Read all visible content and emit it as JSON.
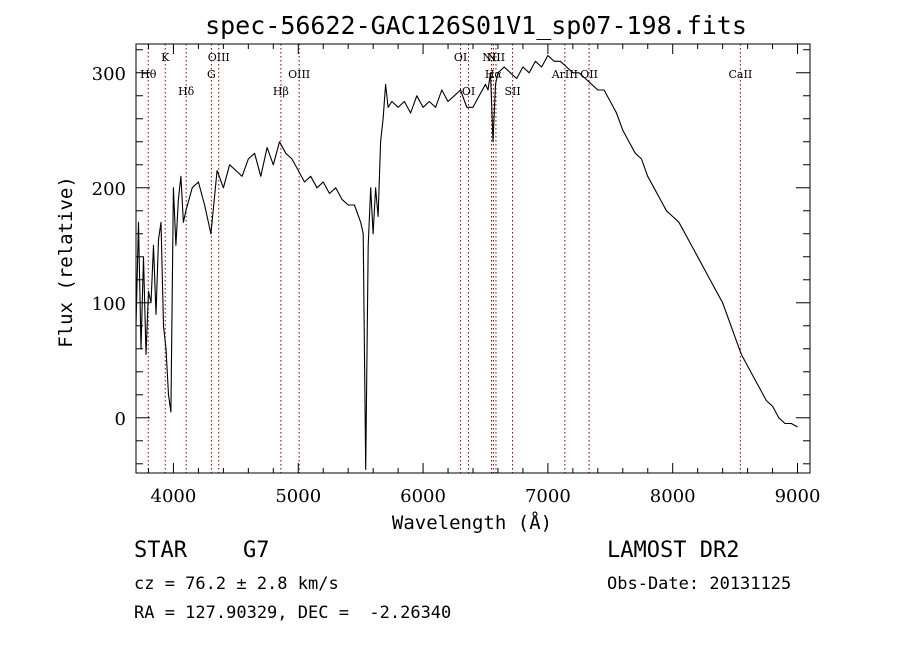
{
  "chart_data": {
    "type": "line",
    "title": "spec-56622-GAC126S01V1_sp07-198.fits",
    "xlabel": "Wavelength (Å)",
    "ylabel": "Flux (relative)",
    "xlim": [
      3700,
      9100
    ],
    "ylim": [
      -48,
      325
    ],
    "x_ticks": [
      4000,
      5000,
      6000,
      7000,
      8000,
      9000
    ],
    "x_tick_labels": [
      "4000",
      "5000",
      "6000",
      "7000",
      "8000",
      "9000"
    ],
    "y_ticks": [
      0,
      100,
      200,
      300
    ],
    "y_tick_labels": [
      "0",
      "100",
      "200",
      "300"
    ],
    "line_color": "#000000",
    "marker_color": "#8b0000",
    "series": [
      {
        "x": [
          3700,
          3720,
          3740,
          3760,
          3780,
          3800,
          3820,
          3840,
          3860,
          3880,
          3900,
          3920,
          3940,
          3960,
          3980,
          4000,
          4020,
          4040,
          4060,
          4080,
          4100,
          4150,
          4200,
          4250,
          4300,
          4350,
          4400,
          4450,
          4500,
          4550,
          4600,
          4650,
          4700,
          4750,
          4800,
          4850,
          4900,
          4950,
          5000,
          5050,
          5100,
          5150,
          5200,
          5250,
          5300,
          5350,
          5400,
          5450,
          5500,
          5520,
          5540,
          5560,
          5580,
          5600,
          5620,
          5640,
          5660,
          5680,
          5700,
          5720,
          5750,
          5800,
          5850,
          5900,
          5950,
          6000,
          6050,
          6100,
          6150,
          6200,
          6250,
          6300,
          6350,
          6400,
          6450,
          6500,
          6520,
          6540,
          6560,
          6580,
          6600,
          6650,
          6700,
          6750,
          6800,
          6850,
          6900,
          6950,
          7000,
          7050,
          7100,
          7150,
          7200,
          7250,
          7300,
          7350,
          7400,
          7450,
          7500,
          7550,
          7600,
          7650,
          7700,
          7750,
          7800,
          7850,
          7900,
          7950,
          8000,
          8050,
          8100,
          8150,
          8200,
          8250,
          8300,
          8350,
          8400,
          8450,
          8500,
          8550,
          8600,
          8650,
          8700,
          8750,
          8800,
          8850,
          8900,
          8950,
          9000
        ],
        "y": [
          80,
          170,
          60,
          140,
          55,
          110,
          100,
          150,
          90,
          155,
          170,
          80,
          60,
          20,
          5,
          200,
          150,
          190,
          210,
          170,
          180,
          200,
          205,
          185,
          160,
          215,
          200,
          220,
          215,
          210,
          225,
          230,
          210,
          235,
          220,
          240,
          230,
          225,
          215,
          205,
          210,
          200,
          205,
          195,
          200,
          190,
          185,
          185,
          170,
          160,
          -45,
          150,
          200,
          160,
          200,
          175,
          240,
          260,
          290,
          270,
          275,
          270,
          275,
          265,
          280,
          270,
          275,
          270,
          285,
          275,
          280,
          285,
          270,
          270,
          280,
          290,
          285,
          300,
          240,
          290,
          300,
          305,
          300,
          295,
          305,
          300,
          310,
          305,
          315,
          310,
          310,
          305,
          300,
          300,
          295,
          290,
          285,
          285,
          275,
          265,
          250,
          240,
          230,
          225,
          210,
          200,
          190,
          180,
          175,
          170,
          160,
          150,
          140,
          130,
          120,
          110,
          100,
          85,
          70,
          55,
          45,
          35,
          25,
          15,
          10,
          0,
          -5,
          -5,
          -8
        ]
      }
    ],
    "lines": [
      {
        "label": "Hθ",
        "x": 3798,
        "label_row": 2
      },
      {
        "label": "K",
        "x": 3934,
        "label_row": 1
      },
      {
        "label": "Hδ",
        "x": 4102,
        "label_row": 3
      },
      {
        "label": "G",
        "x": 4304,
        "label_row": 2
      },
      {
        "label": "OIII",
        "x": 4363,
        "label_row": 1
      },
      {
        "label": "Hβ",
        "x": 4861,
        "label_row": 3
      },
      {
        "label": "OIII",
        "x": 5007,
        "label_row": 2
      },
      {
        "label": "OI",
        "x": 6300,
        "label_row": 1
      },
      {
        "label": "OI",
        "x": 6364,
        "label_row": 3
      },
      {
        "label": "NII",
        "x": 6548,
        "label_row": 1
      },
      {
        "label": "Hα",
        "x": 6563,
        "label_row": 2
      },
      {
        "label": "NII",
        "x": 6584,
        "label_row": 1
      },
      {
        "label": "SII",
        "x": 6717,
        "label_row": 3
      },
      {
        "label": "ArIII",
        "x": 7136,
        "label_row": 2
      },
      {
        "label": "OII",
        "x": 7330,
        "label_row": 2
      },
      {
        "label": "CaII",
        "x": 8542,
        "label_row": 2
      }
    ]
  },
  "info": {
    "object_class": "STAR",
    "subclass": "G7",
    "cz": "cz = 76.2 ± 2.8 km/s",
    "coords": "RA = 127.90329, DEC =  -2.26340",
    "survey": "LAMOST DR2",
    "obs_date": "Obs-Date: 20131125"
  }
}
